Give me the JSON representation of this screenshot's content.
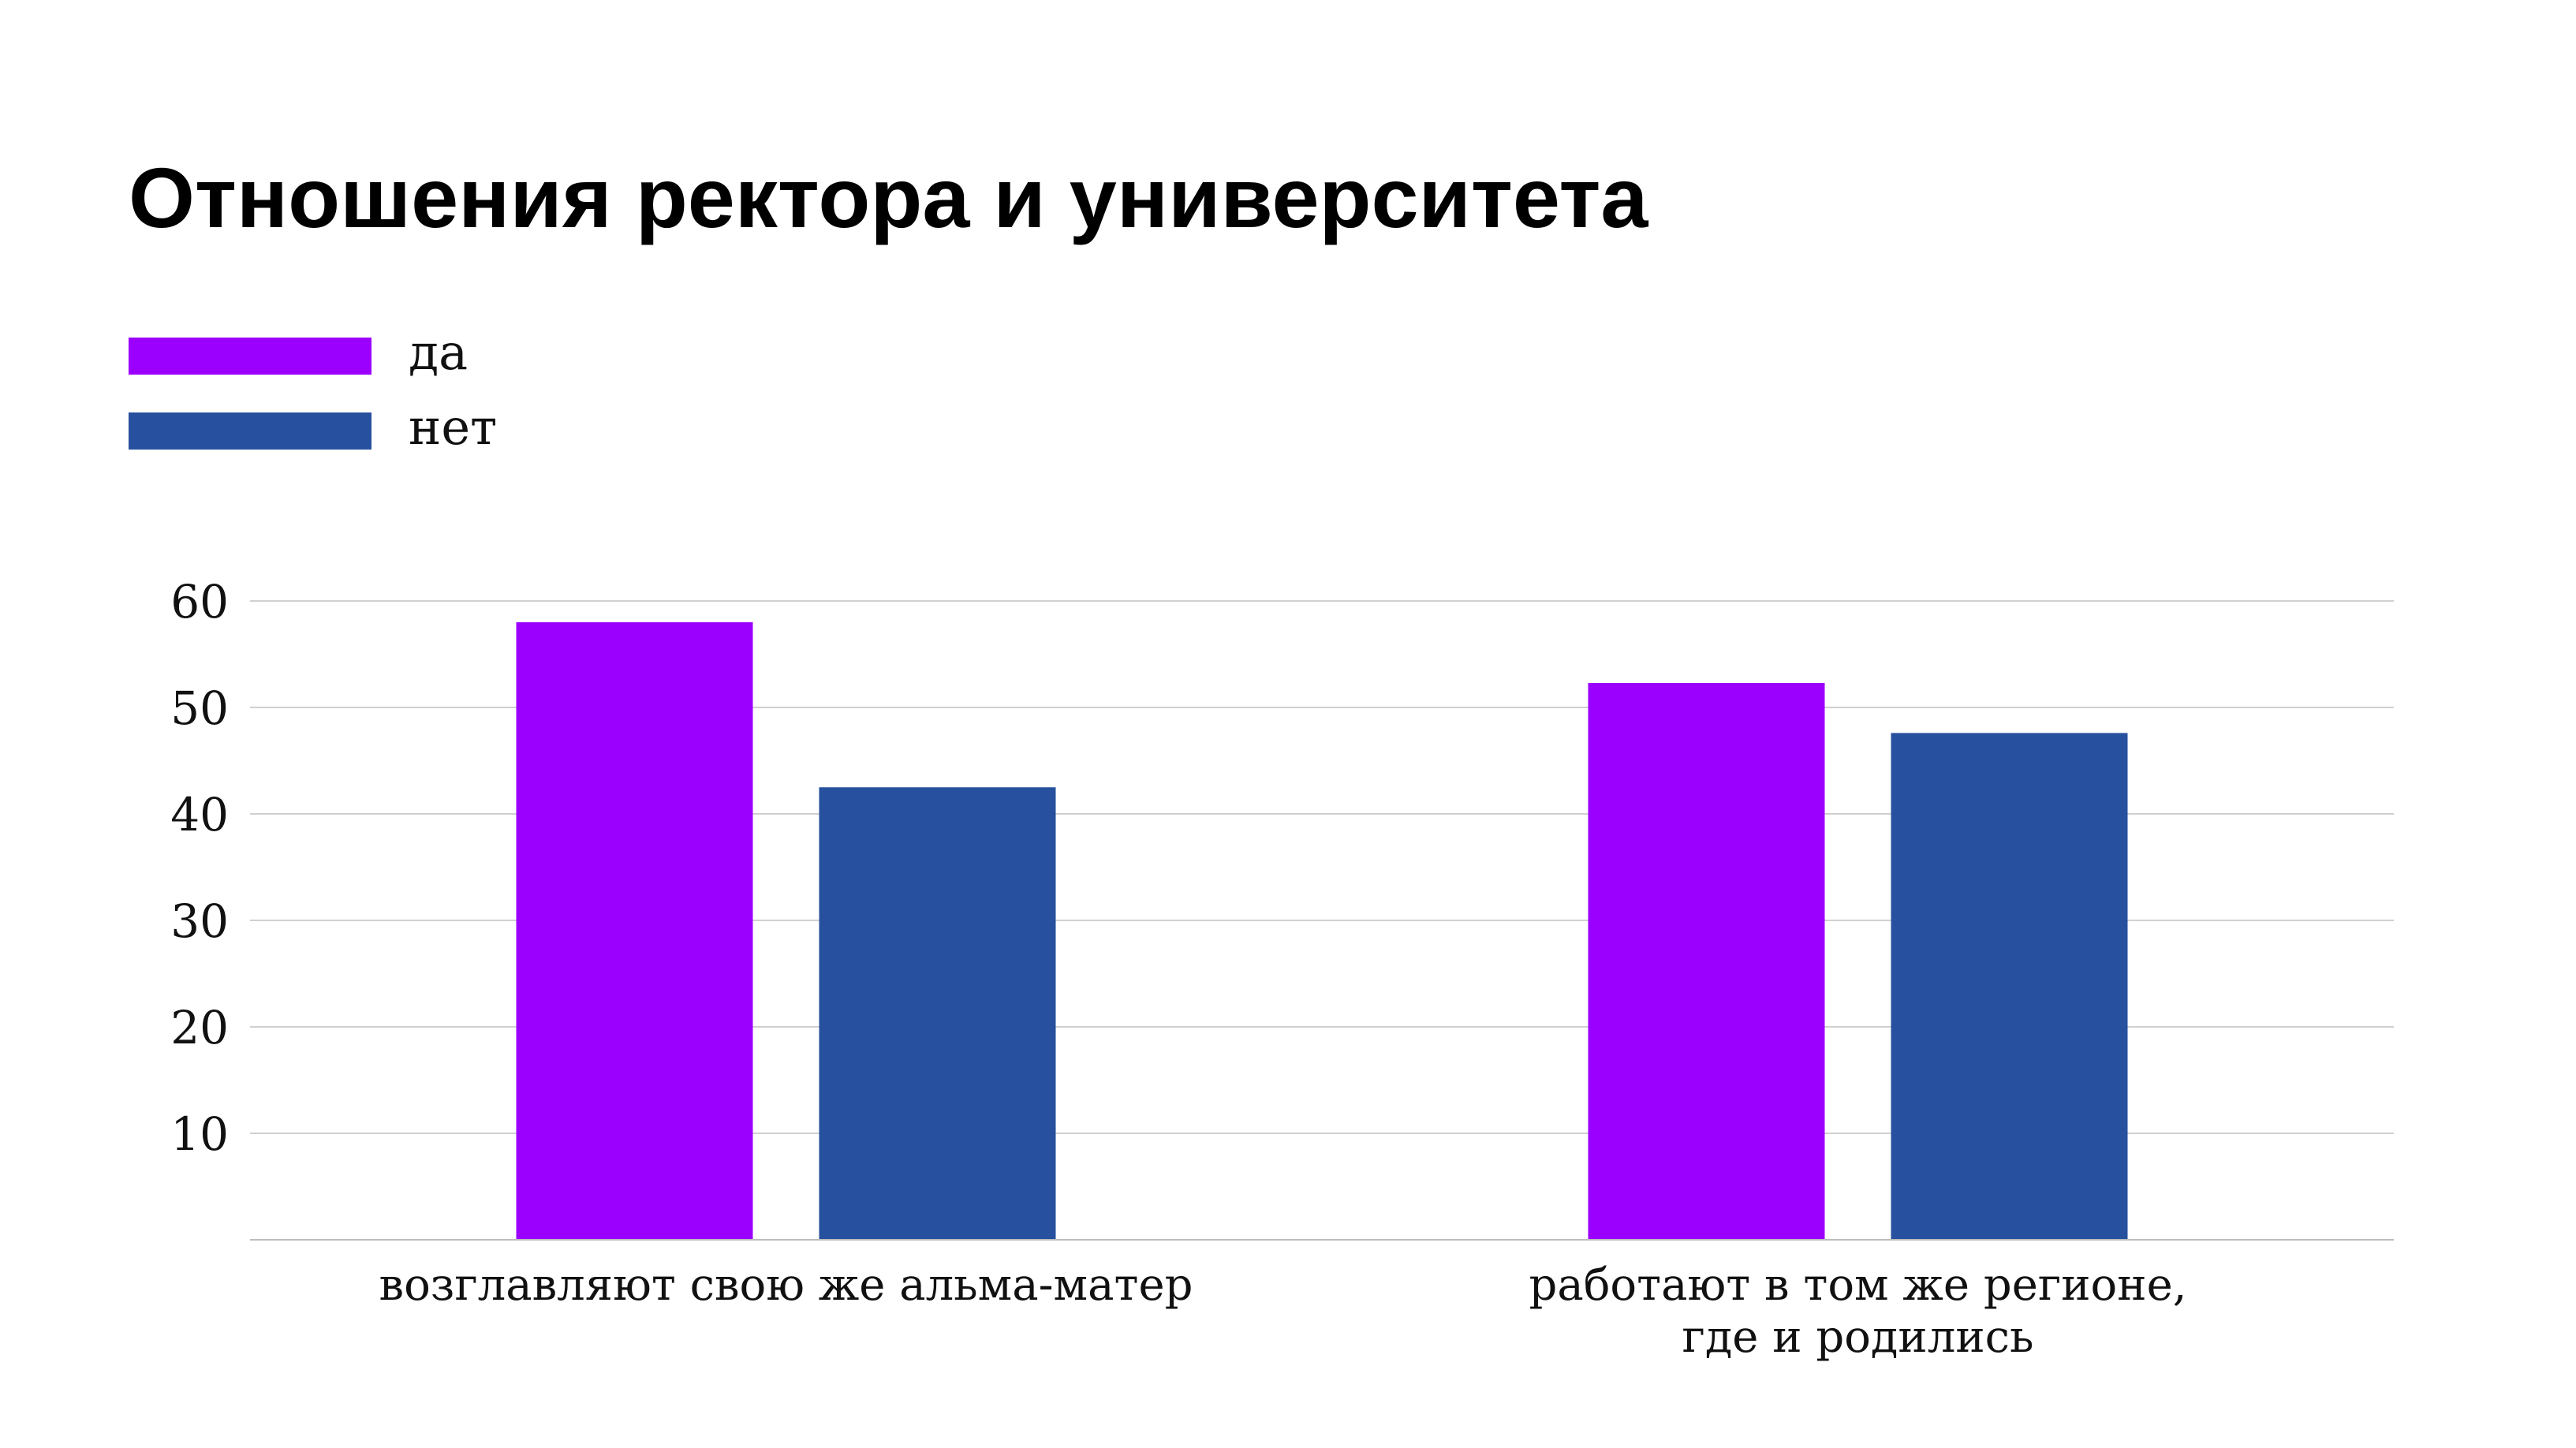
{
  "chart_data": {
    "type": "bar",
    "title": "Отношения ректора и университета",
    "categories": [
      [
        "возглавляют свою же альма-матер"
      ],
      [
        "работают в том же регионе,",
        "где и родились"
      ]
    ],
    "series": [
      {
        "name": "да",
        "values": [
          58,
          52.3
        ],
        "color": "#9b00ff"
      },
      {
        "name": "нет",
        "values": [
          42.5,
          47.6
        ],
        "color": "#27519e"
      }
    ],
    "yticks": [
      10,
      20,
      30,
      40,
      50,
      60
    ],
    "ylim": [
      0,
      60
    ],
    "grid": true,
    "legend_position": "top-left",
    "gridline_color": "#d0d0d0",
    "axis_color": "#bdbdbd",
    "text_color": "#111111"
  }
}
